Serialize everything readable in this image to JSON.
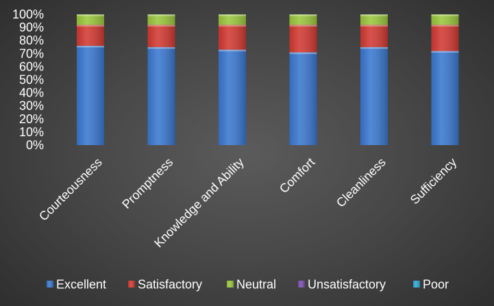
{
  "chart_data": {
    "type": "bar",
    "stacked": true,
    "percent_stacked": true,
    "categories": [
      "Courteousness",
      "Promptness",
      "Knowledge and Ability",
      "Comfort",
      "Cleanliness",
      "Sufficiency"
    ],
    "series": [
      {
        "name": "Excellent",
        "color": "#3a78d0",
        "values": [
          76,
          75,
          73,
          71,
          75,
          72
        ]
      },
      {
        "name": "Satisfactory",
        "color": "#d23a32",
        "values": [
          16,
          17,
          19,
          21,
          17,
          20
        ]
      },
      {
        "name": "Neutral",
        "color": "#9bc73d",
        "values": [
          8,
          8,
          8,
          8,
          8,
          8
        ]
      },
      {
        "name": "Unsatisfactory",
        "color": "#7e4fb2",
        "values": [
          0,
          0,
          0,
          0,
          0,
          0
        ]
      },
      {
        "name": "Poor",
        "color": "#2fa9d2",
        "values": [
          0,
          0,
          0,
          0,
          0,
          0
        ]
      }
    ],
    "yticks": [
      "0%",
      "10%",
      "20%",
      "30%",
      "40%",
      "50%",
      "60%",
      "70%",
      "80%",
      "90%",
      "100%"
    ],
    "ylim": [
      0,
      100
    ],
    "grid": false,
    "legend": "bottom"
  }
}
